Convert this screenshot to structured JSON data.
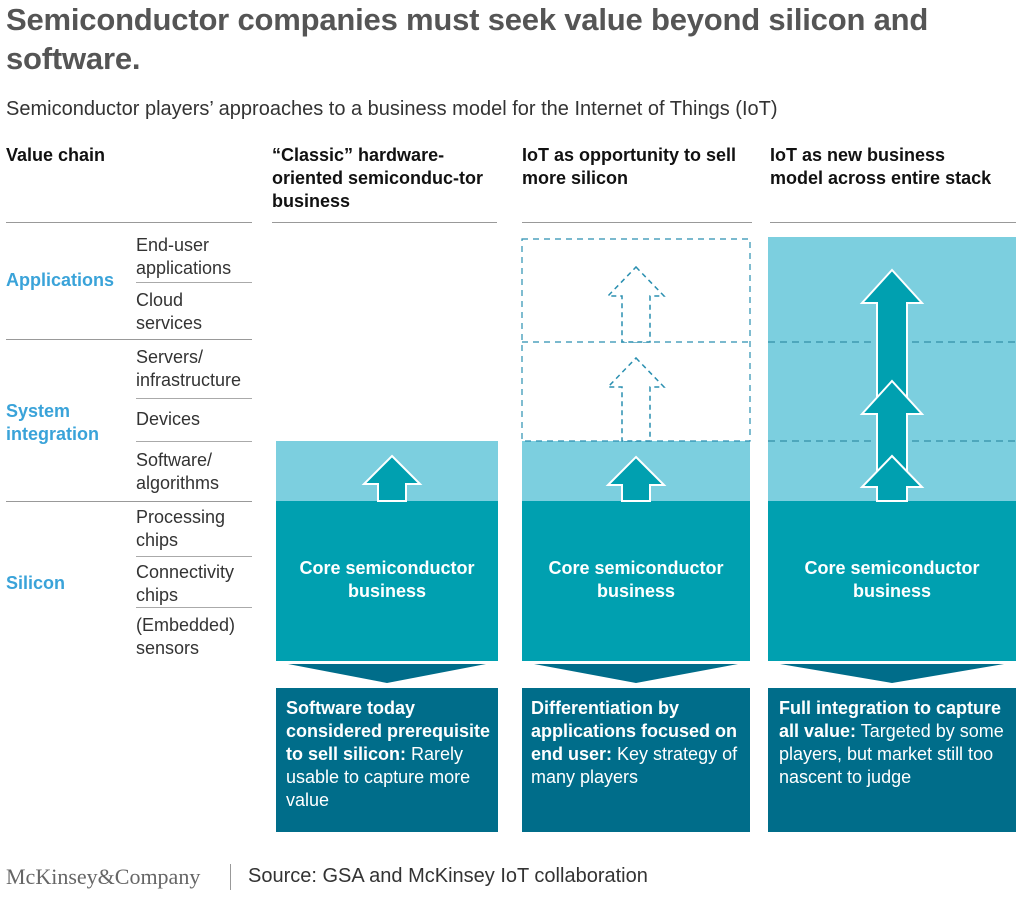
{
  "title": "Semiconductor companies must seek value beyond silicon and software.",
  "subtitle": "Semiconductor players’ approaches to a business model for the Internet of Things (IoT)",
  "value_chain": {
    "header": "Value chain",
    "categories": [
      {
        "name": "Applications",
        "layers": [
          "End-user applications",
          "Cloud services"
        ]
      },
      {
        "name": "System integration",
        "layers": [
          "Servers/ infrastructure",
          "Devices",
          "Software/ algorithms"
        ]
      },
      {
        "name": "Silicon",
        "layers": [
          "Processing chips",
          "Connectivity chips",
          "(Embedded) sensors"
        ]
      }
    ]
  },
  "columns": [
    {
      "header": "“Classic” hardware-oriented semiconduc-tor business",
      "core_label": "Core semiconductor business",
      "box_bold": "Software today considered prerequisite to sell silicon:",
      "box_text": " Rarely usable to capture more value"
    },
    {
      "header": "IoT as opportunity to sell more silicon",
      "core_label": "Core semiconductor business",
      "box_bold": "Differentiation by applications focused on end user:",
      "box_text": " Key strategy of many players"
    },
    {
      "header": "IoT as new business model across entire stack",
      "core_label": "Core semiconductor business",
      "box_bold": "Full integration to capture all value:",
      "box_text": " Targeted by some players, but market still too nascent to judge"
    }
  ],
  "footer": {
    "logo": "McKinsey&Company",
    "source": "Source: GSA and McKinsey IoT collaboration"
  },
  "colors": {
    "light": "#7ccfdf",
    "teal": "#00a0b0",
    "dark": "#006d8a",
    "category": "#3aa3d9"
  }
}
